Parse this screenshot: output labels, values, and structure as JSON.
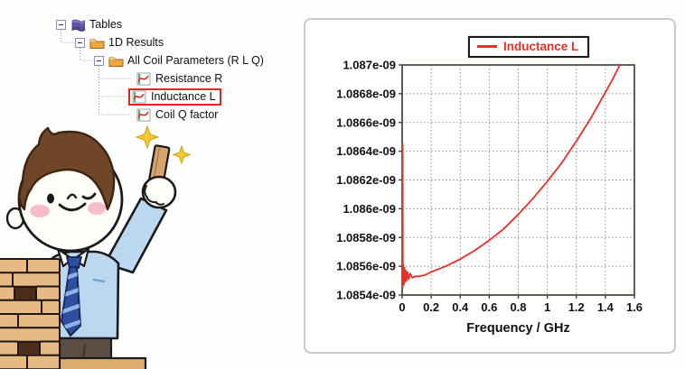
{
  "tree": {
    "items": [
      {
        "label": "Tables",
        "icon": "tables-icon",
        "level": 0,
        "expanded": true
      },
      {
        "label": "1D Results",
        "icon": "folder-icon",
        "level": 1,
        "expanded": true
      },
      {
        "label": "All Coil Parameters (R L Q)",
        "icon": "folder-icon",
        "level": 2,
        "expanded": true
      },
      {
        "label": "Resistance R",
        "icon": "curve-icon",
        "level": 3,
        "selected": false
      },
      {
        "label": "Inductance L",
        "icon": "curve-icon",
        "level": 3,
        "selected": true
      },
      {
        "label": "Coil Q factor",
        "icon": "curve-icon",
        "level": 3,
        "selected": false
      }
    ],
    "selection_box_color": "#e8251c"
  },
  "chart_data": {
    "type": "line",
    "title": "",
    "xlabel": "Frequency / GHz",
    "ylabel": "",
    "xlim": [
      0,
      1.6
    ],
    "ylim": [
      1.0854e-09,
      1.087e-09
    ],
    "x_ticks": [
      "0",
      "0.2",
      "0.4",
      "0.6",
      "0.8",
      "1",
      "1.2",
      "1.4",
      "1.6"
    ],
    "y_ticks": [
      "1.087e-09",
      "1.0868e-09",
      "1.0866e-09",
      "1.0864e-09",
      "1.0862e-09",
      "1.086e-09",
      "1.0858e-09",
      "1.0856e-09",
      "1.0854e-09"
    ],
    "grid": true,
    "grid_style": "dotted",
    "legend_position": "top-center",
    "legend": [
      {
        "label": "Inductance L",
        "color": "#ee2e24"
      }
    ],
    "series": [
      {
        "name": "Inductance L",
        "color": "#ee2e24",
        "points": [
          [
            0.002,
            1.08557e-09
          ],
          [
            0.003,
            1.08545e-09
          ],
          [
            0.004,
            1.08645e-09
          ],
          [
            0.005,
            1.08547e-09
          ],
          [
            0.008,
            1.08561e-09
          ],
          [
            0.012,
            1.08547e-09
          ],
          [
            0.016,
            1.08559e-09
          ],
          [
            0.02,
            1.08549e-09
          ],
          [
            0.025,
            1.08557e-09
          ],
          [
            0.03,
            1.0855e-09
          ],
          [
            0.037,
            1.08556e-09
          ],
          [
            0.045,
            1.08551e-09
          ],
          [
            0.055,
            1.08555e-09
          ],
          [
            0.07,
            1.08552e-09
          ],
          [
            0.09,
            1.08553e-09
          ],
          [
            0.12,
            1.08553e-09
          ],
          [
            0.16,
            1.08554e-09
          ],
          [
            0.2,
            1.08556e-09
          ],
          [
            0.25,
            1.08558e-09
          ],
          [
            0.3,
            1.0856e-09
          ],
          [
            0.4,
            1.08565e-09
          ],
          [
            0.5,
            1.08571e-09
          ],
          [
            0.6,
            1.08578e-09
          ],
          [
            0.7,
            1.08586e-09
          ],
          [
            0.8,
            1.08596e-09
          ],
          [
            0.9,
            1.08607e-09
          ],
          [
            1.0,
            1.08619e-09
          ],
          [
            1.1,
            1.08632e-09
          ],
          [
            1.2,
            1.08647e-09
          ],
          [
            1.3,
            1.08663e-09
          ],
          [
            1.4,
            1.08681e-09
          ],
          [
            1.45,
            1.0869e-09
          ],
          [
            1.5,
            1.087e-09
          ],
          [
            1.53,
            1.08708e-09
          ]
        ]
      }
    ]
  },
  "illustration": {
    "name": "man-holding-block-beside-jenga-tower",
    "shirt_color": "#bcd7f0",
    "tie_color": "#2e4f9f",
    "block_color": "#e6ba82",
    "sparkle_color": "#f4ca2f"
  }
}
